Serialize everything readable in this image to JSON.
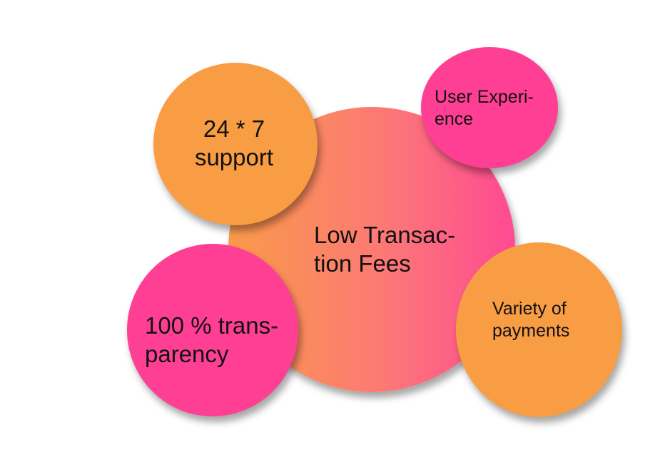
{
  "center": {
    "line1": "Low Transac-",
    "line2": "tion Fees",
    "color": "#fc7876"
  },
  "bubbles": {
    "support": {
      "line1": "24 * 7",
      "line2": "support",
      "color": "#f99d45"
    },
    "user_experience": {
      "line1": "User Experi-",
      "line2": "ence",
      "color": "#ff3f94"
    },
    "transparency": {
      "line1": "100 % trans-",
      "line2": "parency",
      "color": "#ff3f94"
    },
    "variety": {
      "line1": "Variety of",
      "line2": "payments",
      "color": "#f99d45"
    }
  }
}
